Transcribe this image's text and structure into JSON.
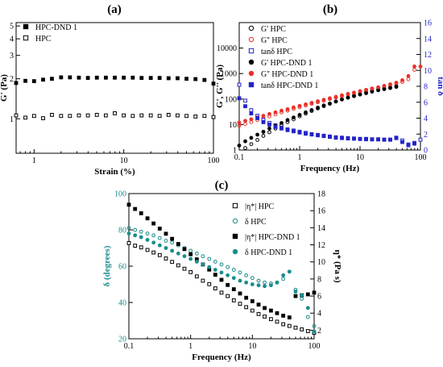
{
  "colors": {
    "black": "#000000",
    "red": "#e8312a",
    "blue": "#2323c8",
    "teal": "#1a8c8c"
  },
  "chart_data": [
    {
      "panel": "(a)",
      "type": "scatter",
      "xlabel": "Strain (%)",
      "ylabel": "G' (Pa)",
      "xscale": "log",
      "yscale": "log",
      "xlim": [
        0.63,
        100
      ],
      "ylim": [
        0.55,
        5.3
      ],
      "x_ticks": [
        "1",
        "10",
        "100"
      ],
      "y_ticks": [
        "1",
        "2",
        "3",
        "4",
        "5"
      ],
      "legend_position": "top-left",
      "series": [
        {
          "name": "HPC-DND 1",
          "marker": "filled-square",
          "color": "#000000",
          "x": [
            0.63,
            0.8,
            1.0,
            1.26,
            1.58,
            2.0,
            2.51,
            3.16,
            3.98,
            5.01,
            6.31,
            7.94,
            10,
            12.6,
            15.8,
            20,
            25.1,
            31.6,
            39.8,
            50.1,
            63.1,
            79.4,
            100
          ],
          "y": [
            1.86,
            1.93,
            1.92,
            1.97,
            2.0,
            2.05,
            2.05,
            2.04,
            2.03,
            2.04,
            2.04,
            2.04,
            2.04,
            2.04,
            2.03,
            2.03,
            2.03,
            2.02,
            2.02,
            2.0,
            1.99,
            1.96,
            1.84
          ]
        },
        {
          "name": "HPC",
          "marker": "open-square",
          "color": "#000000",
          "x": [
            0.63,
            0.8,
            1.0,
            1.26,
            1.58,
            2.0,
            2.51,
            3.16,
            3.98,
            5.01,
            6.31,
            7.94,
            10,
            12.6,
            15.8,
            20,
            25.1,
            31.6,
            39.8,
            50.1,
            63.1,
            79.4,
            100
          ],
          "y": [
            1.06,
            1.02,
            1.05,
            1.01,
            1.07,
            1.05,
            1.05,
            1.06,
            1.06,
            1.07,
            1.06,
            1.1,
            1.06,
            1.05,
            1.06,
            1.06,
            1.05,
            1.07,
            1.06,
            1.05,
            1.04,
            1.05,
            1.03
          ]
        }
      ]
    },
    {
      "panel": "(b)",
      "type": "scatter",
      "xlabel": "Frequency (Hz)",
      "ylabel": "G', G'' (Pa)",
      "y2label": "tan δ",
      "xscale": "log",
      "yscale": "log",
      "xlim": [
        0.1,
        100
      ],
      "ylim": [
        1,
        100000
      ],
      "y2lim": [
        0,
        16
      ],
      "x_ticks": [
        "0.1",
        "1",
        "10",
        "100"
      ],
      "y_ticks": [
        "1",
        "10",
        "100",
        "1000",
        "10000"
      ],
      "y2_ticks": [
        "0",
        "2",
        "4",
        "6",
        "8",
        "10",
        "12",
        "14",
        "16"
      ],
      "legend_position": "top-left",
      "series": [
        {
          "name": "G' HPC",
          "axis": "left",
          "marker": "open-circle",
          "color": "#000000",
          "x": [
            0.1,
            0.126,
            0.158,
            0.2,
            0.251,
            0.316,
            0.398,
            0.501,
            0.631,
            0.794,
            1.0,
            1.26,
            1.58,
            2.0,
            2.51,
            3.16,
            3.98,
            5.01,
            6.31,
            7.94,
            10,
            12.6,
            15.8,
            20,
            25.1,
            31.6,
            39.8
          ],
          "y": [
            0.8,
            1.2,
            1.7,
            2.5,
            3.6,
            5,
            7,
            9.5,
            12.5,
            16,
            21,
            27,
            34,
            43,
            53,
            65,
            80,
            97,
            115,
            135,
            160,
            185,
            210,
            240,
            265,
            290,
            320
          ]
        },
        {
          "name": "G'' HPC",
          "axis": "left",
          "marker": "open-circle",
          "color": "#e8312a",
          "x": [
            0.1,
            0.126,
            0.158,
            0.2,
            0.251,
            0.316,
            0.398,
            0.501,
            0.631,
            0.794,
            1.0,
            1.26,
            1.58,
            2.0,
            2.51,
            3.16,
            3.98,
            5.01,
            6.31,
            7.94,
            10,
            12.6,
            15.8,
            20,
            25.1,
            31.6,
            39.8,
            50.1,
            63.1,
            79.4
          ],
          "y": [
            9,
            10.5,
            12.5,
            15,
            18,
            21,
            25,
            30,
            35,
            41,
            48,
            56,
            65,
            75,
            86,
            100,
            115,
            130,
            150,
            170,
            195,
            220,
            250,
            280,
            320,
            360,
            410,
            470,
            600,
            1400
          ]
        },
        {
          "name": "tanδ HPC",
          "axis": "right",
          "marker": "open-square",
          "color": "#2323c8",
          "x": [
            0.1,
            0.126,
            0.158,
            0.2,
            0.251,
            0.316,
            0.398,
            0.501,
            0.631,
            0.794,
            1.0,
            1.26,
            1.58,
            2.0,
            2.51,
            3.16,
            3.98,
            5.01,
            6.31,
            7.94,
            10,
            12.6,
            15.8,
            20,
            25.1,
            31.6,
            39.8,
            50.1,
            63.1,
            79.4,
            100
          ],
          "y": [
            8.2,
            6.2,
            5.0,
            4.3,
            3.8,
            3.4,
            3.1,
            2.8,
            2.6,
            2.45,
            2.3,
            2.15,
            2.0,
            1.9,
            1.8,
            1.7,
            1.6,
            1.55,
            1.5,
            1.45,
            1.4,
            1.4,
            1.35,
            1.35,
            1.3,
            1.3,
            1.5,
            1.2,
            0.7,
            0.9,
            1.3
          ]
        },
        {
          "name": "G' HPC-DND 1",
          "axis": "left",
          "marker": "filled-circle",
          "color": "#000000",
          "x": [
            0.1,
            0.126,
            0.158,
            0.2,
            0.251,
            0.316,
            0.398,
            0.501,
            0.631,
            0.794,
            1.0,
            1.26,
            1.58,
            2.0,
            2.51,
            3.16,
            3.98,
            5.01,
            6.31,
            7.94,
            10,
            12.6,
            15.8,
            20,
            25.1,
            31.6,
            39.8
          ],
          "y": [
            1.5,
            2.2,
            3,
            4,
            5.2,
            7,
            9,
            11.5,
            15,
            19,
            24,
            30,
            37,
            46,
            56,
            67,
            80,
            96,
            113,
            130,
            150,
            170,
            195,
            220,
            245,
            270,
            300
          ]
        },
        {
          "name": "G'' HPC-DND 1",
          "axis": "left",
          "marker": "filled-circle",
          "color": "#e8312a",
          "x": [
            0.1,
            0.126,
            0.158,
            0.2,
            0.251,
            0.316,
            0.398,
            0.501,
            0.631,
            0.794,
            1.0,
            1.26,
            1.58,
            2.0,
            2.51,
            3.16,
            3.98,
            5.01,
            6.31,
            7.94,
            10,
            12.6,
            15.8,
            20,
            25.1,
            31.6,
            39.8,
            50.1,
            63.1,
            79.4,
            100
          ],
          "y": [
            12,
            14,
            16,
            19,
            22,
            26,
            30,
            35,
            40,
            47,
            54,
            62,
            71,
            82,
            94,
            108,
            122,
            140,
            160,
            180,
            205,
            230,
            260,
            290,
            330,
            380,
            440,
            550,
            800,
            1900,
            1900
          ]
        },
        {
          "name": "tanδ HPC-DND 1",
          "axis": "right",
          "marker": "filled-square",
          "color": "#2323c8",
          "x": [
            0.1,
            0.126,
            0.158,
            0.2,
            0.251,
            0.316,
            0.398,
            0.501,
            0.631,
            0.794,
            1.0,
            1.26,
            1.58,
            2.0,
            2.51,
            3.16,
            3.98,
            5.01,
            6.31,
            7.94,
            10,
            12.6,
            15.8,
            20,
            25.1,
            31.6,
            39.8,
            50.1,
            63.1,
            79.4
          ],
          "y": [
            6.5,
            5.5,
            4.6,
            4.0,
            3.5,
            3.2,
            2.9,
            2.7,
            2.5,
            2.35,
            2.2,
            2.05,
            1.95,
            1.85,
            1.75,
            1.65,
            1.55,
            1.5,
            1.45,
            1.42,
            1.38,
            1.35,
            1.33,
            1.33,
            1.3,
            1.3,
            1.55,
            1.0,
            0.6,
            0.8
          ]
        }
      ]
    },
    {
      "panel": "(c)",
      "type": "scatter",
      "xlabel": "Frequency (Hz)",
      "ylabel": "δ (degrees)",
      "y2label": "η* (Pa s)",
      "xscale": "log",
      "yscale": "linear",
      "xlim": [
        0.1,
        100
      ],
      "ylim": [
        20,
        100
      ],
      "y2lim": [
        1,
        18
      ],
      "x_ticks": [
        "0.1",
        "1",
        "10",
        "100"
      ],
      "y_ticks": [
        "20",
        "40",
        "60",
        "80",
        "100"
      ],
      "y2_ticks": [
        "2",
        "4",
        "6",
        "8",
        "10",
        "12",
        "14",
        "16",
        "18"
      ],
      "legend_position": "top-right",
      "series": [
        {
          "name": "|η*| HPC",
          "axis": "right",
          "marker": "open-square",
          "color": "#000000",
          "x": [
            0.1,
            0.126,
            0.158,
            0.2,
            0.251,
            0.316,
            0.398,
            0.501,
            0.631,
            0.794,
            1.0,
            1.26,
            1.58,
            2.0,
            2.51,
            3.16,
            3.98,
            5.01,
            6.31,
            7.94,
            10,
            12.6,
            15.8,
            20,
            25.1,
            31.6,
            39.8,
            50.1,
            63.1,
            79.4,
            100
          ],
          "y": [
            12.2,
            11.9,
            11.7,
            11.4,
            11.1,
            10.8,
            10.4,
            10.0,
            9.6,
            9.2,
            8.8,
            8.3,
            7.8,
            7.4,
            6.9,
            6.4,
            6.0,
            5.5,
            5.1,
            4.7,
            4.3,
            3.9,
            3.6,
            3.3,
            3.0,
            2.7,
            2.5,
            2.3,
            2.1,
            1.9,
            1.7
          ]
        },
        {
          "name": "δ HPC",
          "axis": "left",
          "marker": "open-circle",
          "color": "#1a8c8c",
          "x": [
            0.1,
            0.126,
            0.158,
            0.2,
            0.251,
            0.316,
            0.398,
            0.501,
            0.631,
            0.794,
            1.0,
            1.26,
            1.58,
            2.0,
            2.51,
            3.16,
            3.98,
            5.01,
            6.31,
            7.94,
            10,
            12.6,
            15.8,
            20,
            25.1,
            31.6,
            39.8,
            50.1,
            63.1,
            79.4,
            100
          ],
          "y": [
            81,
            80,
            79,
            78,
            77,
            75.5,
            74,
            73,
            71.5,
            70,
            68.5,
            67,
            65.5,
            64,
            62.5,
            61,
            59.5,
            58,
            56.5,
            55,
            53.5,
            52,
            51,
            50.5,
            51,
            53,
            57,
            47,
            42,
            32,
            27
          ]
        },
        {
          "name": "|η*| HPC-DND 1",
          "axis": "right",
          "marker": "filled-square",
          "color": "#000000",
          "x": [
            0.1,
            0.126,
            0.158,
            0.2,
            0.251,
            0.316,
            0.398,
            0.501,
            0.631,
            0.794,
            1.0,
            1.26,
            1.58,
            2.0,
            2.51,
            3.16,
            3.98,
            5.01,
            6.31,
            7.94,
            10,
            12.6,
            15.8,
            20,
            25.1,
            31.6,
            39.8,
            50.1,
            63.1,
            79.4,
            100
          ],
          "y": [
            16.7,
            16.2,
            15.7,
            15.1,
            14.5,
            13.9,
            13.3,
            12.7,
            12.1,
            11.5,
            10.9,
            10.3,
            9.7,
            9.1,
            8.5,
            7.9,
            7.3,
            6.8,
            6.3,
            5.8,
            5.4,
            5.0,
            4.6,
            4.3,
            4.0,
            3.7,
            3.5,
            6.0,
            6.1,
            6.2,
            6.4
          ]
        },
        {
          "name": "δ HPC-DND 1",
          "axis": "left",
          "marker": "filled-circle",
          "color": "#1a8c8c",
          "x": [
            0.1,
            0.126,
            0.158,
            0.2,
            0.251,
            0.316,
            0.398,
            0.501,
            0.631,
            0.794,
            1.0,
            1.26,
            1.58,
            2.0,
            2.51,
            3.16,
            3.98,
            5.01,
            6.31,
            7.94,
            10,
            12.6,
            15.8,
            20,
            25.1,
            31.6,
            39.8,
            50.1,
            63.1,
            79.4,
            100
          ],
          "y": [
            78,
            77,
            76,
            74.5,
            73,
            71.5,
            70,
            68.5,
            67,
            65.5,
            64,
            62.5,
            61,
            59.5,
            58,
            56.5,
            55,
            53.5,
            52,
            51,
            50,
            49.5,
            49,
            49.5,
            51,
            55,
            57,
            46,
            44,
            37,
            24
          ]
        }
      ]
    }
  ]
}
